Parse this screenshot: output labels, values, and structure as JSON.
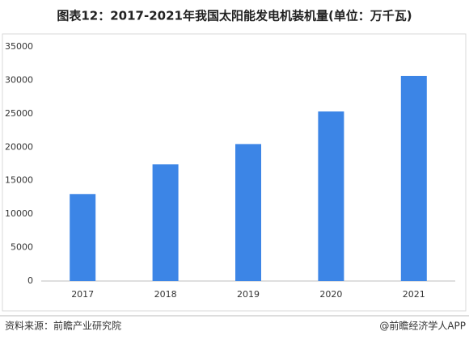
{
  "chart_data": {
    "type": "bar",
    "title": "图表12：2017-2021年我国太阳能发电机装机量(单位：万千瓦)",
    "categories": [
      "2017",
      "2018",
      "2019",
      "2020",
      "2021"
    ],
    "values": [
      13000,
      17450,
      20470,
      25340,
      30660
    ],
    "color": "#3c85e6",
    "ylim": [
      0,
      35000
    ],
    "yticks": [
      0,
      5000,
      10000,
      15000,
      20000,
      25000,
      30000,
      35000
    ],
    "grid": false
  },
  "footer": {
    "source": "资料来源：前瞻产业研究院",
    "credit": "@前瞻经济学人APP"
  }
}
